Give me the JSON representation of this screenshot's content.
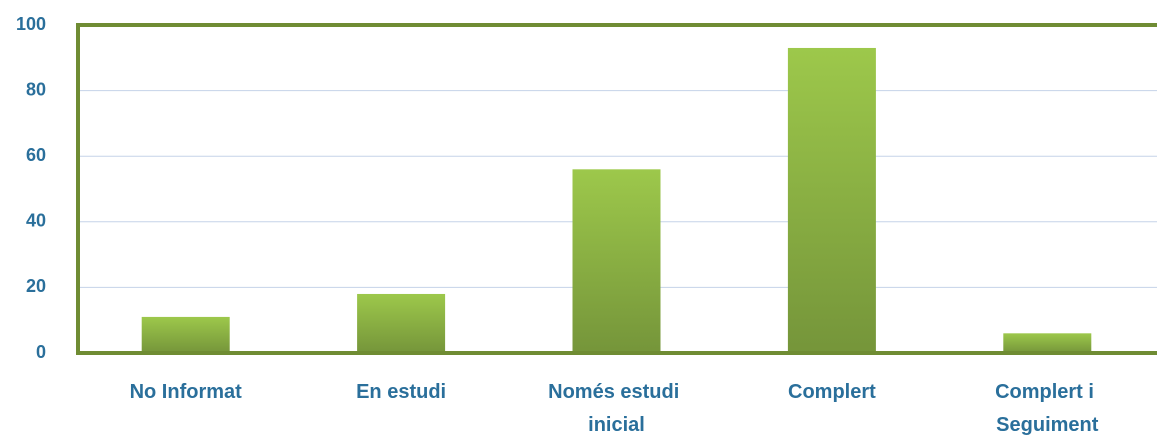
{
  "chart_data": {
    "type": "bar",
    "categories": [
      "No Informat",
      "En estudi",
      "Només estudi inicial",
      "Complert",
      "Complert i Seguiment"
    ],
    "values": [
      11,
      18,
      56,
      93,
      6
    ],
    "color": "#8db443",
    "ylim": [
      0,
      100
    ],
    "yticks": [
      0,
      20,
      40,
      60,
      80,
      100
    ],
    "grid": true
  }
}
